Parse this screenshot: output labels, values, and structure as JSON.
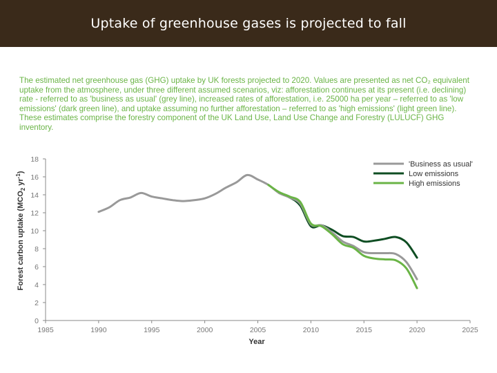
{
  "page": {
    "title": "Uptake of greenhouse gases is projected to fall",
    "caption": "The estimated net greenhouse gas (GHG) uptake by UK forests projected to 2020. Values are presented as net CO₂ equivalent uptake from the atmosphere, under three different assumed scenarios, viz: afforestation continues at its present (i.e. declining) rate - referred to as 'business as usual' (grey line), increased rates of afforestation, i.e. 25000 ha per year – referred to as 'low emissions' (dark green line), and uptake assuming no further afforestation – referred to as 'high emissions' (light green line). These estimates comprise the forestry component of the UK Land Use, Land Use Change and Forestry (LULUCF) GHG inventory."
  },
  "colors": {
    "title_bar": "#3a2a1a",
    "caption": "#6ab446",
    "business_as_usual": "#999999",
    "low_emissions": "#0e4d22",
    "high_emissions": "#6ab446",
    "axis": "#888888"
  },
  "chart_data": {
    "type": "line",
    "xlabel": "Year",
    "ylabel_parts": [
      "Forest carbon uptake (MCO",
      "2",
      " yr",
      "-1",
      ")"
    ],
    "xlim": [
      1985,
      2025
    ],
    "ylim": [
      0,
      18
    ],
    "xticks": [
      1985,
      1990,
      1995,
      2000,
      2005,
      2010,
      2015,
      2020,
      2025
    ],
    "xtick_labels": [
      "1985",
      "1990",
      "1995",
      "2000",
      "2005",
      "2010",
      "2015",
      "2020",
      "2025"
    ],
    "yticks": [
      0,
      2,
      4,
      6,
      8,
      10,
      12,
      14,
      16,
      18
    ],
    "ytick_labels": [
      "0",
      "2",
      "4",
      "6",
      "8",
      "10",
      "12",
      "14",
      "16",
      "18"
    ],
    "legend_position": "top-right",
    "series": [
      {
        "name": "'Business as usual'",
        "key": "business_as_usual",
        "x": [
          1990,
          1991,
          1992,
          1993,
          1994,
          1995,
          1996,
          1997,
          1998,
          1999,
          2000,
          2001,
          2002,
          2003,
          2004,
          2005,
          2006,
          2007,
          2008,
          2009,
          2010,
          2011,
          2012,
          2013,
          2014,
          2015,
          2016,
          2017,
          2018,
          2019,
          2020
        ],
        "y": [
          12.1,
          12.6,
          13.4,
          13.7,
          14.2,
          13.8,
          13.6,
          13.4,
          13.3,
          13.4,
          13.6,
          14.1,
          14.8,
          15.4,
          16.2,
          15.7,
          15.1,
          14.2,
          13.7,
          13.0,
          10.7,
          10.6,
          9.8,
          8.8,
          8.3,
          7.6,
          7.5,
          7.5,
          7.4,
          6.5,
          4.6
        ]
      },
      {
        "name": "Low emissions",
        "key": "low_emissions",
        "x": [
          2007,
          2008,
          2009,
          2010,
          2011,
          2012,
          2013,
          2014,
          2015,
          2016,
          2017,
          2018,
          2019,
          2020
        ],
        "y": [
          14.2,
          13.7,
          12.8,
          10.5,
          10.6,
          10.1,
          9.4,
          9.3,
          8.8,
          8.9,
          9.1,
          9.3,
          8.7,
          7.0
        ]
      },
      {
        "name": "High emissions",
        "key": "high_emissions",
        "x": [
          2006,
          2007,
          2008,
          2009,
          2010,
          2011,
          2012,
          2013,
          2014,
          2015,
          2016,
          2017,
          2018,
          2019,
          2020
        ],
        "y": [
          15.1,
          14.3,
          13.8,
          13.2,
          10.8,
          10.5,
          9.6,
          8.5,
          8.1,
          7.2,
          6.9,
          6.8,
          6.7,
          5.8,
          3.6
        ]
      }
    ]
  }
}
